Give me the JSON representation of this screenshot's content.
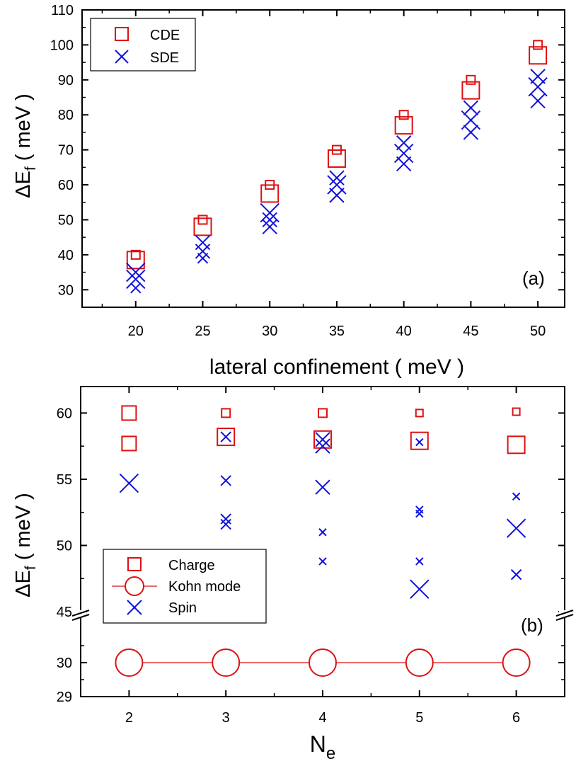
{
  "colors": {
    "charge": "#dd1111",
    "spin": "#1111dd",
    "axis": "#000000"
  },
  "chart_data": [
    {
      "type": "scatter",
      "panel_label": "(a)",
      "xlabel": "lateral confinement ( meV )",
      "ylabel_main": "ΔE",
      "ylabel_sub": "f",
      "ylabel_tail": " ( meV )",
      "xlim": [
        16,
        52
      ],
      "ylim": [
        25,
        110
      ],
      "xticks": [
        20,
        25,
        30,
        35,
        40,
        45,
        50
      ],
      "yticks": [
        30,
        40,
        50,
        60,
        70,
        80,
        90,
        100,
        110
      ],
      "legend": {
        "position": "top-left",
        "entries": [
          "CDE",
          "SDE"
        ]
      },
      "series": [
        {
          "name": "CDE",
          "marker": "square",
          "points": [
            {
              "x": 20,
              "y": 38.5,
              "size": "large"
            },
            {
              "x": 20,
              "y": 40,
              "size": "small"
            },
            {
              "x": 25,
              "y": 48,
              "size": "large"
            },
            {
              "x": 25,
              "y": 50,
              "size": "small"
            },
            {
              "x": 30,
              "y": 57.5,
              "size": "large"
            },
            {
              "x": 30,
              "y": 60,
              "size": "small"
            },
            {
              "x": 35,
              "y": 67.5,
              "size": "large"
            },
            {
              "x": 35,
              "y": 70,
              "size": "small"
            },
            {
              "x": 40,
              "y": 77,
              "size": "large"
            },
            {
              "x": 40,
              "y": 80,
              "size": "small"
            },
            {
              "x": 45,
              "y": 87,
              "size": "large"
            },
            {
              "x": 45,
              "y": 90,
              "size": "small"
            },
            {
              "x": 50,
              "y": 97,
              "size": "large"
            },
            {
              "x": 50,
              "y": 100,
              "size": "small"
            }
          ]
        },
        {
          "name": "SDE",
          "marker": "cross",
          "points": [
            {
              "x": 20,
              "y": 35,
              "size": "large"
            },
            {
              "x": 20,
              "y": 33,
              "size": "large"
            },
            {
              "x": 20,
              "y": 30.5,
              "size": "small"
            },
            {
              "x": 25,
              "y": 43.5,
              "size": "medium"
            },
            {
              "x": 25,
              "y": 41,
              "size": "medium"
            },
            {
              "x": 25,
              "y": 39,
              "size": "small"
            },
            {
              "x": 30,
              "y": 52,
              "size": "large"
            },
            {
              "x": 30,
              "y": 50,
              "size": "medium"
            },
            {
              "x": 30,
              "y": 48,
              "size": "medium"
            },
            {
              "x": 35,
              "y": 62,
              "size": "medium"
            },
            {
              "x": 35,
              "y": 60,
              "size": "large"
            },
            {
              "x": 35,
              "y": 57,
              "size": "medium"
            },
            {
              "x": 40,
              "y": 72,
              "size": "medium"
            },
            {
              "x": 40,
              "y": 69,
              "size": "large"
            },
            {
              "x": 40,
              "y": 66,
              "size": "medium"
            },
            {
              "x": 45,
              "y": 82,
              "size": "medium"
            },
            {
              "x": 45,
              "y": 78.5,
              "size": "large"
            },
            {
              "x": 45,
              "y": 75,
              "size": "medium"
            },
            {
              "x": 50,
              "y": 91,
              "size": "medium"
            },
            {
              "x": 50,
              "y": 88,
              "size": "large"
            },
            {
              "x": 50,
              "y": 84,
              "size": "medium"
            }
          ]
        }
      ]
    },
    {
      "type": "scatter",
      "panel_label": "(b)",
      "xlabel_main": "N",
      "xlabel_sub": "e",
      "ylabel_main": "ΔE",
      "ylabel_sub": "f",
      "ylabel_tail": " ( meV )",
      "xlim": [
        1.5,
        6.5
      ],
      "ylim_lower": [
        29,
        31
      ],
      "ylim_upper": [
        45,
        62
      ],
      "axis_break": "between 31 and 45",
      "xticks": [
        2,
        3,
        4,
        5,
        6
      ],
      "yticks": [
        "29",
        "30",
        "45",
        "50",
        "55",
        "60"
      ],
      "legend": {
        "position": "bottom-left",
        "entries": [
          "Charge",
          "Kohn mode",
          "Spin"
        ]
      },
      "series": [
        {
          "name": "Charge",
          "marker": "square",
          "points": [
            {
              "x": 2,
              "y": 60,
              "size": "medium"
            },
            {
              "x": 2,
              "y": 57.7,
              "size": "medium"
            },
            {
              "x": 3,
              "y": 60,
              "size": "small"
            },
            {
              "x": 3,
              "y": 58.2,
              "size": "large"
            },
            {
              "x": 4,
              "y": 60,
              "size": "small"
            },
            {
              "x": 4,
              "y": 58,
              "size": "large"
            },
            {
              "x": 5,
              "y": 60,
              "size": "tiny"
            },
            {
              "x": 5,
              "y": 57.9,
              "size": "large"
            },
            {
              "x": 6,
              "y": 60.1,
              "size": "tiny"
            },
            {
              "x": 6,
              "y": 57.6,
              "size": "large"
            }
          ]
        },
        {
          "name": "Kohn mode",
          "marker": "circle",
          "line": true,
          "points": [
            {
              "x": 2,
              "y": 30
            },
            {
              "x": 3,
              "y": 30
            },
            {
              "x": 4,
              "y": 30
            },
            {
              "x": 5,
              "y": 30
            },
            {
              "x": 6,
              "y": 30
            }
          ]
        },
        {
          "name": "Spin",
          "marker": "cross",
          "points": [
            {
              "x": 2,
              "y": 54.7,
              "size": "large"
            },
            {
              "x": 3,
              "y": 58.2,
              "size": "small"
            },
            {
              "x": 3,
              "y": 54.9,
              "size": "small"
            },
            {
              "x": 3,
              "y": 52,
              "size": "small"
            },
            {
              "x": 3,
              "y": 51.6,
              "size": "small"
            },
            {
              "x": 4,
              "y": 58,
              "size": "medium"
            },
            {
              "x": 4,
              "y": 57.5,
              "size": "medium"
            },
            {
              "x": 4,
              "y": 54.4,
              "size": "medium"
            },
            {
              "x": 4,
              "y": 51,
              "size": "tiny"
            },
            {
              "x": 4,
              "y": 48.8,
              "size": "tiny"
            },
            {
              "x": 5,
              "y": 57.8,
              "size": "tiny"
            },
            {
              "x": 5,
              "y": 52.7,
              "size": "tiny"
            },
            {
              "x": 5,
              "y": 52.4,
              "size": "tiny"
            },
            {
              "x": 5,
              "y": 48.8,
              "size": "tiny"
            },
            {
              "x": 5,
              "y": 46.7,
              "size": "large"
            },
            {
              "x": 6,
              "y": 53.7,
              "size": "tiny"
            },
            {
              "x": 6,
              "y": 51.3,
              "size": "large"
            },
            {
              "x": 6,
              "y": 47.8,
              "size": "small"
            }
          ]
        }
      ]
    }
  ]
}
